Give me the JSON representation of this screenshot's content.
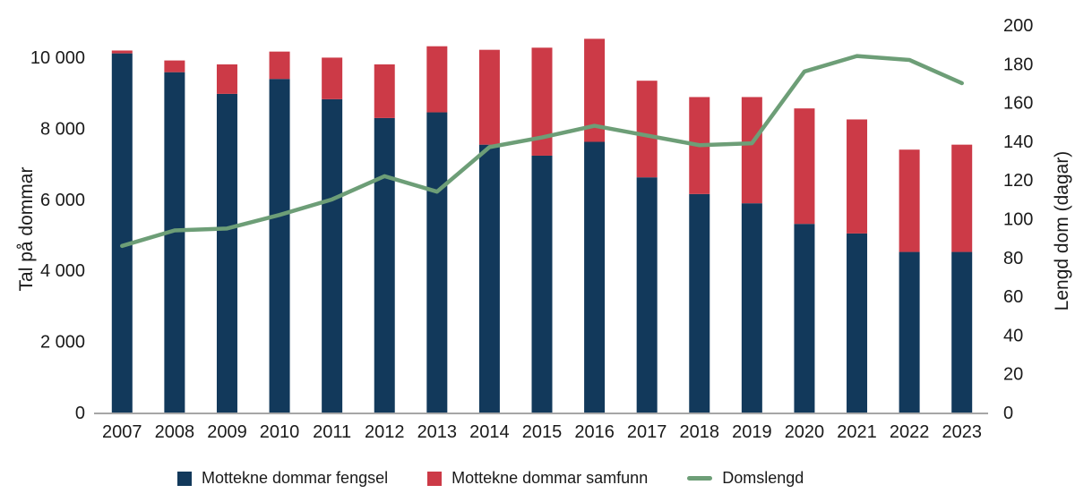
{
  "chart_data": {
    "type": "bar",
    "subtype": "stacked-bars-with-secondary-axis-line",
    "categories": [
      "2007",
      "2008",
      "2009",
      "2010",
      "2011",
      "2012",
      "2013",
      "2014",
      "2015",
      "2016",
      "2017",
      "2018",
      "2019",
      "2020",
      "2021",
      "2022",
      "2023"
    ],
    "series": [
      {
        "name": "Mottekne dommar fengsel",
        "type": "bar",
        "axis": "left",
        "color": "#12395B",
        "values": [
          10110,
          9580,
          8970,
          9390,
          8820,
          8290,
          8450,
          7540,
          7230,
          7620,
          6620,
          6150,
          5890,
          5310,
          5040,
          4520,
          4520
        ]
      },
      {
        "name": "Mottekne dommar samfunn",
        "type": "bar",
        "axis": "left",
        "color": "#CC3A47",
        "values": [
          80,
          330,
          830,
          770,
          1170,
          1510,
          1860,
          2670,
          3040,
          2900,
          2720,
          2730,
          2990,
          3250,
          3210,
          2880,
          3020
        ]
      },
      {
        "name": "Domslengd",
        "type": "line",
        "axis": "right",
        "color": "#6D9E77",
        "values": [
          86,
          94,
          95,
          102,
          110,
          122,
          114,
          137,
          142,
          148,
          143,
          138,
          139,
          176,
          184,
          182,
          170
        ]
      }
    ],
    "left_axis": {
      "title": "Tal på dommar",
      "min": 0,
      "max": 10000,
      "tick_values": [
        0,
        2000,
        4000,
        6000,
        8000,
        10000
      ],
      "tick_labels": [
        "0",
        "2 000",
        "4 000",
        "6 000",
        "8 000",
        "10 000"
      ]
    },
    "right_axis": {
      "title": "Lengd dom (dagar)",
      "min": 0,
      "max": 200,
      "tick_values": [
        0,
        20,
        40,
        60,
        80,
        100,
        120,
        140,
        160,
        180,
        200
      ],
      "tick_labels": [
        "0",
        "20",
        "40",
        "60",
        "80",
        "100",
        "120",
        "140",
        "160",
        "180",
        "200"
      ]
    },
    "grid": false,
    "legend_position": "bottom",
    "styles": {
      "text_color": "#1a1a1a",
      "baseline_color": "#A6A6A6",
      "background": "#ffffff"
    }
  },
  "legend": {
    "items": [
      {
        "label": "Mottekne dommar fengsel"
      },
      {
        "label": "Mottekne dommar samfunn"
      },
      {
        "label": "Domslengd"
      }
    ]
  }
}
